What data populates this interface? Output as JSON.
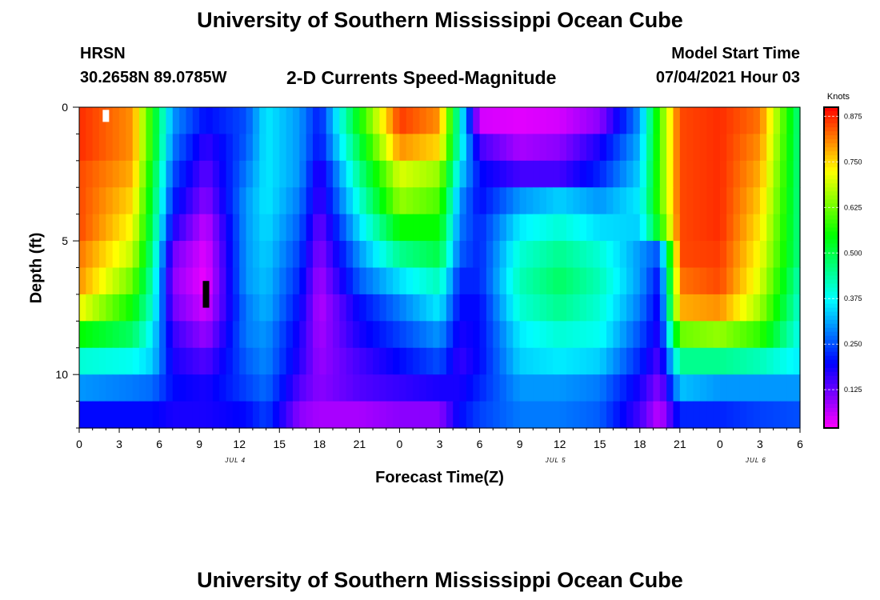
{
  "page": {
    "title_top": "University of Southern Mississippi Ocean Cube",
    "title_bottom": "University of Southern Mississippi Ocean Cube",
    "station": "HRSN",
    "coords": "30.2658N  89.0785W",
    "subtitle": "2-D Currents Speed-Magnitude",
    "model_label": "Model Start Time",
    "model_time": "07/04/2021 Hour 03"
  },
  "chart_data": {
    "type": "heatmap",
    "title": "2-D Currents Speed-Magnitude",
    "xlabel": "Forecast Time(Z)",
    "ylabel": "Depth (ft)",
    "x_range_hours": [
      0,
      54
    ],
    "x_ticks": [
      "0",
      "3",
      "6",
      "9",
      "12",
      "15",
      "18",
      "21",
      "0",
      "3",
      "6",
      "9",
      "12",
      "15",
      "18",
      "21",
      "0",
      "3",
      "6"
    ],
    "y_ticks": [
      "0",
      "5",
      "10"
    ],
    "y_range_ft": [
      0,
      12
    ],
    "date_labels": [
      {
        "label": "JUL 4",
        "hour": 11.7
      },
      {
        "label": "JUL 5",
        "hour": 35.7
      },
      {
        "label": "JUL 6",
        "hour": 50.7
      }
    ],
    "colorbar": {
      "unit": "Knots",
      "ticks": [
        "0.875",
        "0.750",
        "0.625",
        "0.500",
        "0.375",
        "0.250",
        "0.125"
      ],
      "range": [
        0.02,
        0.9
      ]
    },
    "depth_levels_ft": [
      0.5,
      1.5,
      2.5,
      3.5,
      4.5,
      5.5,
      6.5,
      7.5,
      8.5,
      9.5,
      10.5,
      11.5
    ],
    "anchors": {
      "hours": [
        0,
        4,
        5.5,
        7,
        9.5,
        12.5,
        14,
        16.5,
        18,
        21,
        24,
        27,
        28.5,
        30,
        33,
        36,
        39,
        42,
        43.5,
        45,
        48,
        51,
        54
      ],
      "speeds_knots_by_depth": [
        [
          0.87,
          0.8,
          0.55,
          0.3,
          0.2,
          0.25,
          0.36,
          0.3,
          0.21,
          0.55,
          0.86,
          0.8,
          0.4,
          0.05,
          0.04,
          0.05,
          0.1,
          0.3,
          0.6,
          0.85,
          0.87,
          0.82,
          0.45
        ],
        [
          0.87,
          0.8,
          0.55,
          0.28,
          0.16,
          0.26,
          0.36,
          0.3,
          0.2,
          0.5,
          0.8,
          0.75,
          0.4,
          0.15,
          0.08,
          0.1,
          0.18,
          0.32,
          0.6,
          0.85,
          0.87,
          0.8,
          0.45
        ],
        [
          0.85,
          0.78,
          0.52,
          0.25,
          0.13,
          0.28,
          0.36,
          0.3,
          0.16,
          0.45,
          0.7,
          0.65,
          0.35,
          0.2,
          0.15,
          0.15,
          0.22,
          0.34,
          0.6,
          0.85,
          0.87,
          0.78,
          0.45
        ],
        [
          0.85,
          0.75,
          0.5,
          0.22,
          0.1,
          0.3,
          0.36,
          0.28,
          0.15,
          0.4,
          0.65,
          0.6,
          0.3,
          0.2,
          0.3,
          0.34,
          0.3,
          0.36,
          0.6,
          0.85,
          0.87,
          0.76,
          0.45
        ],
        [
          0.85,
          0.72,
          0.48,
          0.18,
          0.06,
          0.3,
          0.35,
          0.26,
          0.12,
          0.35,
          0.55,
          0.55,
          0.28,
          0.22,
          0.36,
          0.4,
          0.35,
          0.34,
          0.55,
          0.85,
          0.87,
          0.74,
          0.45
        ],
        [
          0.82,
          0.68,
          0.45,
          0.12,
          0.04,
          0.3,
          0.34,
          0.24,
          0.1,
          0.3,
          0.45,
          0.5,
          0.26,
          0.22,
          0.4,
          0.45,
          0.4,
          0.3,
          0.25,
          0.85,
          0.86,
          0.72,
          0.45
        ],
        [
          0.8,
          0.62,
          0.42,
          0.1,
          0.03,
          0.3,
          0.33,
          0.22,
          0.08,
          0.26,
          0.35,
          0.42,
          0.22,
          0.22,
          0.42,
          0.48,
          0.42,
          0.3,
          0.2,
          0.82,
          0.85,
          0.7,
          0.42
        ],
        [
          0.72,
          0.55,
          0.4,
          0.12,
          0.05,
          0.28,
          0.32,
          0.2,
          0.07,
          0.2,
          0.28,
          0.36,
          0.2,
          0.2,
          0.4,
          0.45,
          0.4,
          0.28,
          0.18,
          0.78,
          0.8,
          0.66,
          0.4
        ],
        [
          0.55,
          0.48,
          0.36,
          0.16,
          0.09,
          0.28,
          0.3,
          0.18,
          0.08,
          0.18,
          0.24,
          0.3,
          0.18,
          0.2,
          0.36,
          0.4,
          0.38,
          0.25,
          0.17,
          0.62,
          0.65,
          0.58,
          0.38
        ],
        [
          0.4,
          0.38,
          0.34,
          0.18,
          0.14,
          0.26,
          0.29,
          0.17,
          0.09,
          0.15,
          0.2,
          0.25,
          0.16,
          0.2,
          0.34,
          0.36,
          0.34,
          0.22,
          0.14,
          0.45,
          0.45,
          0.42,
          0.36
        ],
        [
          0.3,
          0.28,
          0.27,
          0.2,
          0.18,
          0.24,
          0.27,
          0.14,
          0.1,
          0.14,
          0.16,
          0.18,
          0.18,
          0.22,
          0.3,
          0.3,
          0.28,
          0.18,
          0.1,
          0.33,
          0.3,
          0.3,
          0.3
        ],
        [
          0.2,
          0.2,
          0.2,
          0.18,
          0.18,
          0.2,
          0.24,
          0.1,
          0.08,
          0.08,
          0.1,
          0.1,
          0.2,
          0.24,
          0.28,
          0.28,
          0.26,
          0.15,
          0.06,
          0.22,
          0.22,
          0.24,
          0.25
        ]
      ]
    },
    "markers": [
      {
        "hour": 2,
        "depth_from": 0.1,
        "depth_to": 0.55,
        "color": "#ffffff"
      },
      {
        "hour": 9.5,
        "depth_from": 6.5,
        "depth_to": 7.5,
        "color": "#000000"
      }
    ]
  }
}
